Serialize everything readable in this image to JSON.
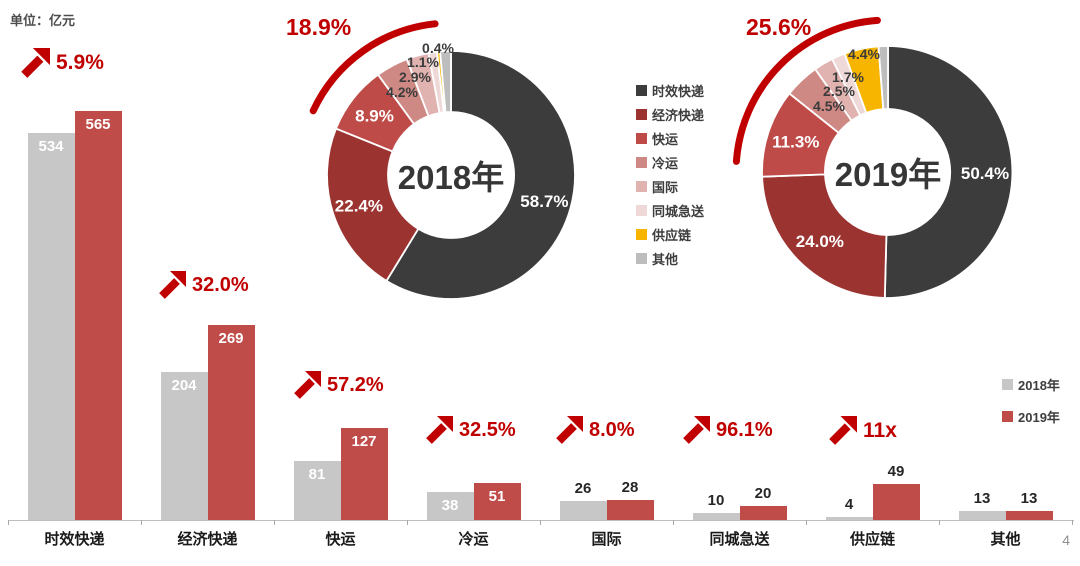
{
  "meta": {
    "unit_label": "单位：亿元",
    "page_number": "4"
  },
  "colors": {
    "accent_red": "#C00000",
    "axis": "#BFBFBF",
    "categories": {
      "时效快递": "#3C3C3C",
      "经济快递": "#9B3431",
      "快运": "#BE4B47",
      "冷运": "#CE8984",
      "国际": "#E0B3B0",
      "同城急送": "#EFD9D8",
      "供应链": "#F7B500",
      "其他": "#BDBDBD"
    }
  },
  "chart_data": [
    {
      "type": "bar",
      "unit": "亿元",
      "categories": [
        "时效快递",
        "经济快递",
        "快运",
        "冷运",
        "国际",
        "同城急送",
        "供应链",
        "其他"
      ],
      "series": [
        {
          "name": "2018年",
          "color": "#C7C7C7",
          "values": [
            534,
            204,
            81,
            38,
            26,
            10,
            4,
            13
          ]
        },
        {
          "name": "2019年",
          "color": "#BF4C49",
          "values": [
            565,
            269,
            127,
            51,
            28,
            20,
            49,
            13
          ]
        }
      ],
      "growth_labels": [
        "5.9%",
        "32.0%",
        "57.2%",
        "32.5%",
        "8.0%",
        "96.1%",
        "11x",
        ""
      ],
      "ylim": [
        0,
        565
      ],
      "legend_position": "right"
    },
    {
      "type": "donut",
      "title": "2018年",
      "labels": [
        "时效快递",
        "经济快递",
        "快运",
        "冷运",
        "国际",
        "同城急送",
        "供应链",
        "其他"
      ],
      "values": [
        58.7,
        22.4,
        8.9,
        4.2,
        2.9,
        1.1,
        0.4,
        1.4
      ],
      "value_labels": [
        "58.7%",
        "22.4%",
        "8.9%",
        "4.2%",
        "2.9%",
        "1.1%",
        "0.4%",
        ""
      ],
      "highlight_label": "18.9%"
    },
    {
      "type": "donut",
      "title": "2019年",
      "labels": [
        "时效快递",
        "经济快递",
        "快运",
        "冷运",
        "国际",
        "同城急送",
        "供应链",
        "其他"
      ],
      "values": [
        50.4,
        24.0,
        11.3,
        4.5,
        2.5,
        1.7,
        4.4,
        1.2
      ],
      "value_labels": [
        "50.4%",
        "24.0%",
        "11.3%",
        "4.5%",
        "2.5%",
        "1.7%",
        "4.4%",
        ""
      ],
      "highlight_label": "25.6%"
    }
  ],
  "donut_legend": [
    "时效快递",
    "经济快递",
    "快运",
    "冷运",
    "国际",
    "同城急送",
    "供应链",
    "其他"
  ],
  "bar_legend": [
    {
      "label": "2018年",
      "color": "#C7C7C7"
    },
    {
      "label": "2019年",
      "color": "#BF4C49"
    }
  ]
}
